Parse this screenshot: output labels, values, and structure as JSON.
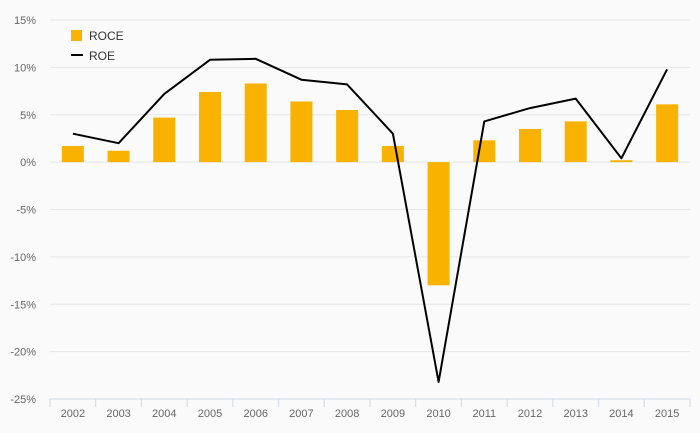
{
  "chart_data": {
    "type": "bar",
    "title": "",
    "xlabel": "",
    "ylabel": "",
    "ylim": [
      -25,
      15
    ],
    "y_ticks": [
      15,
      10,
      5,
      0,
      -5,
      -10,
      -15,
      -20,
      -25
    ],
    "y_tick_labels": [
      "15%",
      "10%",
      "5%",
      "0%",
      "-5%",
      "-10%",
      "-15%",
      "-20%",
      "-25%"
    ],
    "grid": true,
    "legend_position": "top-left",
    "categories": [
      "2002",
      "2003",
      "2004",
      "2005",
      "2006",
      "2007",
      "2008",
      "2009",
      "2010",
      "2011",
      "2012",
      "2013",
      "2014",
      "2015"
    ],
    "series": [
      {
        "name": "ROCE",
        "type": "bar",
        "color": "#f9b200",
        "values": [
          1.7,
          1.2,
          4.7,
          7.4,
          8.3,
          6.4,
          5.5,
          1.7,
          -13.0,
          2.3,
          3.5,
          4.3,
          0.2,
          6.1
        ]
      },
      {
        "name": "ROE",
        "type": "line",
        "color": "#000000",
        "values": [
          3.0,
          2.0,
          7.2,
          10.8,
          10.9,
          8.7,
          8.2,
          3.0,
          -23.2,
          4.3,
          5.7,
          6.7,
          0.4,
          9.8
        ]
      }
    ]
  }
}
